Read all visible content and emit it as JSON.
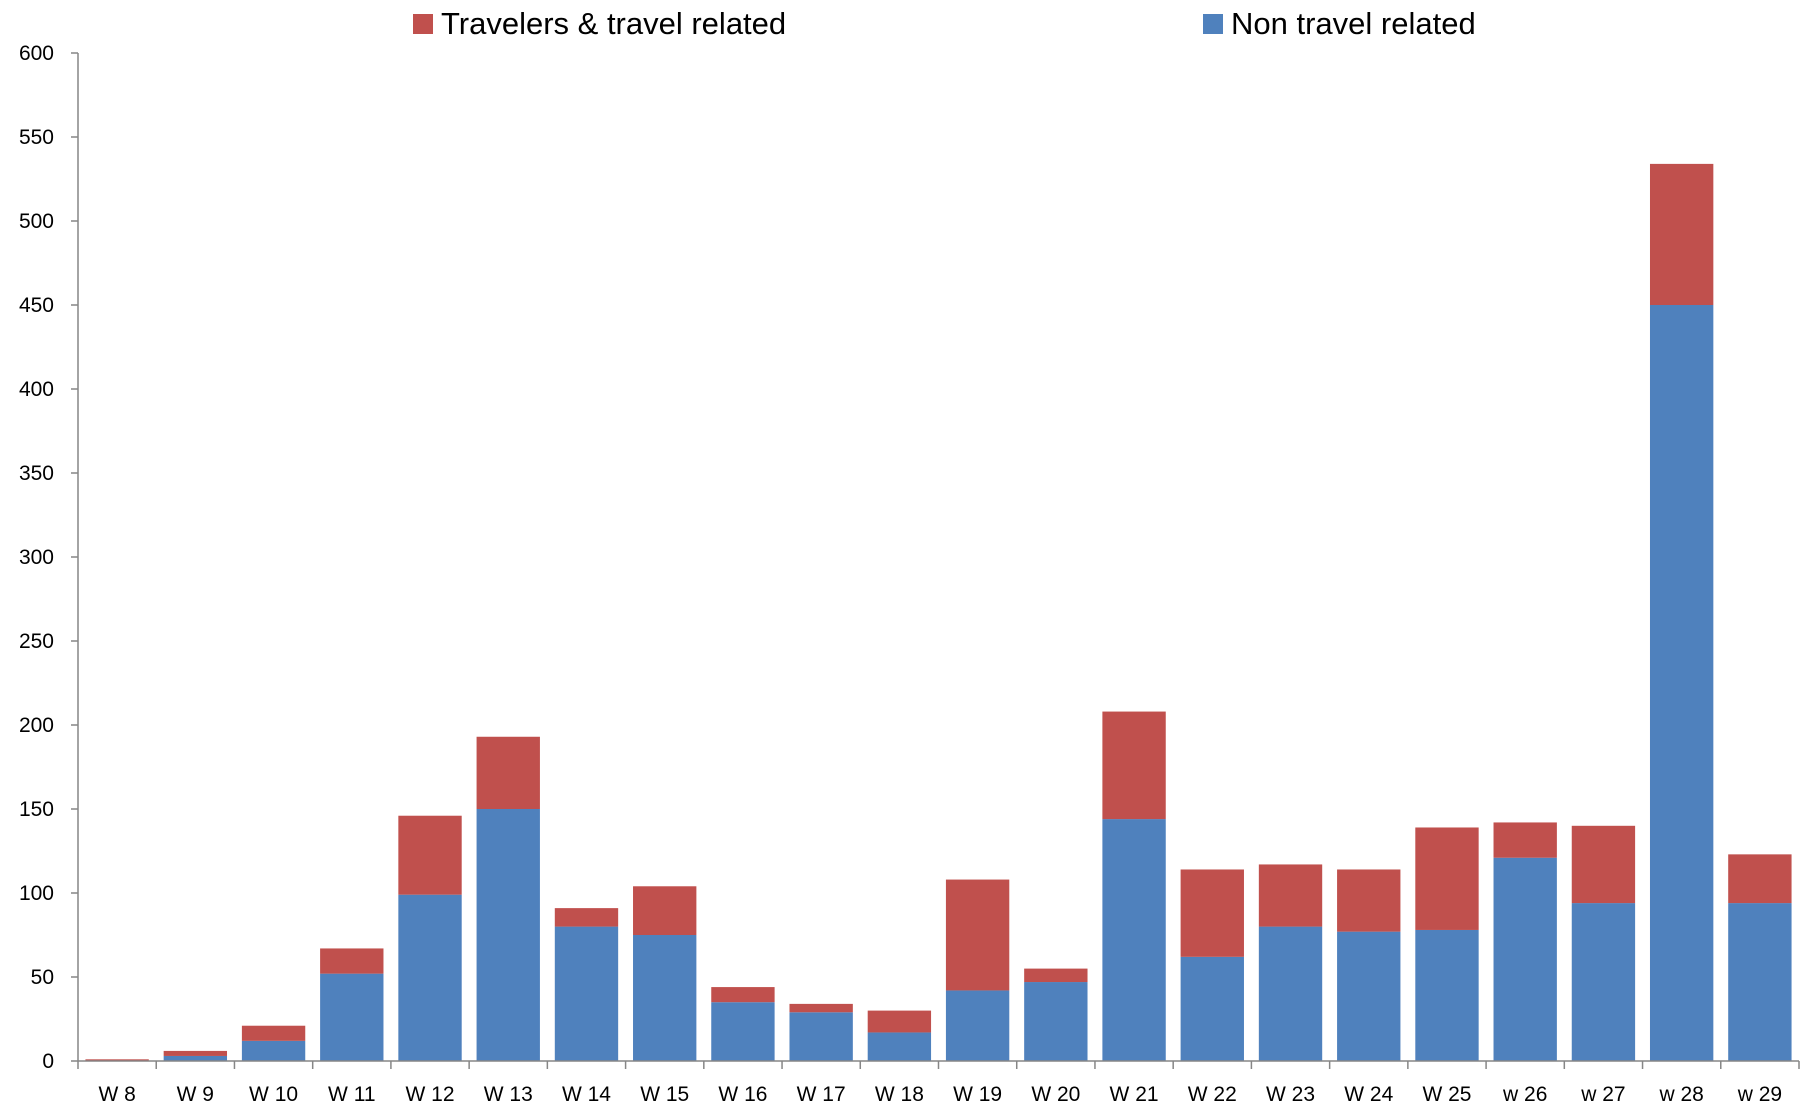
{
  "legend": [
    {
      "label": "Travelers & travel related",
      "color": "#C0504D"
    },
    {
      "label": "Non travel related",
      "color": "#4F81BD"
    }
  ],
  "chart_data": {
    "type": "bar",
    "stacked": true,
    "title": "",
    "xlabel": "",
    "ylabel": "",
    "ylim": [
      0,
      600
    ],
    "yticks": [
      0,
      50,
      100,
      150,
      200,
      250,
      300,
      350,
      400,
      450,
      500,
      550,
      600
    ],
    "grid": false,
    "legend_position": "top",
    "categories": [
      "W 8",
      "W 9",
      "W 10",
      "W 11",
      "W 12",
      "W 13",
      "W 14",
      "W 15",
      "W 16",
      "W 17",
      "W 18",
      "W 19",
      "W 20",
      "W 21",
      "W 22",
      "W 23",
      "W 24",
      "W 25",
      "w 26",
      "w 27",
      "w 28",
      "w 29"
    ],
    "series": [
      {
        "name": "Non travel related",
        "color": "#4F81BD",
        "values": [
          0,
          3,
          12,
          52,
          99,
          150,
          80,
          75,
          35,
          29,
          17,
          42,
          47,
          144,
          62,
          80,
          77,
          78,
          121,
          94,
          450,
          94
        ]
      },
      {
        "name": "Travelers & travel related",
        "color": "#C0504D",
        "values": [
          1,
          3,
          9,
          15,
          47,
          43,
          11,
          29,
          9,
          5,
          13,
          66,
          8,
          64,
          52,
          37,
          37,
          61,
          21,
          46,
          84,
          29
        ]
      }
    ]
  }
}
